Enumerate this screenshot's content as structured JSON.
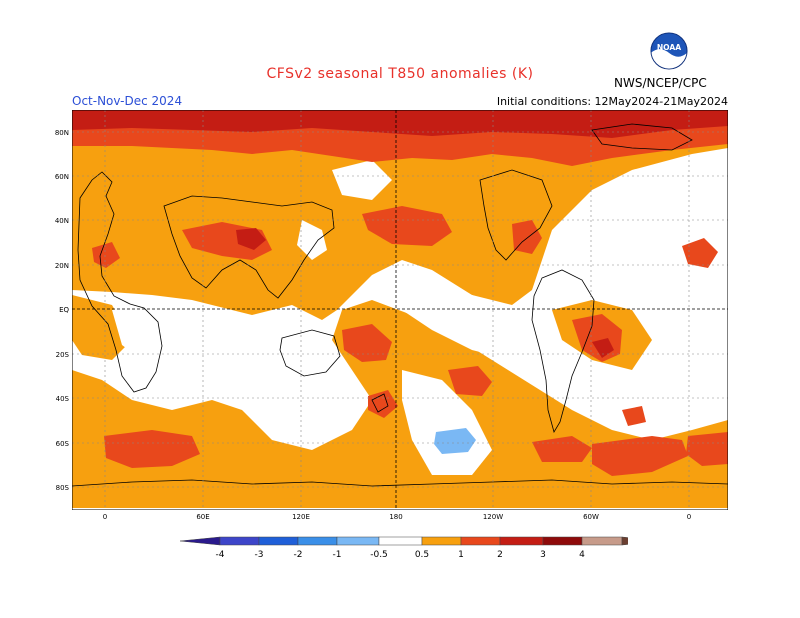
{
  "title": "CFSv2 seasonal T850 anomalies (K)",
  "season": "Oct-Nov-Dec 2024",
  "initial_conditions": "Initial conditions: 12May2024-21May2024",
  "agency": "NWS/NCEP/CPC",
  "logo_text": "NOAA",
  "lat_labels": [
    "80N",
    "60N",
    "40N",
    "20N",
    "EQ",
    "20S",
    "40S",
    "60S",
    "80S"
  ],
  "lon_labels": [
    "0",
    "60E",
    "120E",
    "180",
    "120W",
    "60W",
    "0"
  ],
  "legend": {
    "ticks": [
      "-4",
      "-3",
      "-2",
      "-1",
      "-0.5",
      "0.5",
      "1",
      "2",
      "3",
      "4"
    ],
    "colors": [
      "#2a1a8c",
      "#3d45c9",
      "#1f5fd8",
      "#3a8fe8",
      "#7ab8f4",
      "#ffffff",
      "#f7a00f",
      "#e8481c",
      "#c41d14",
      "#8e0a0a",
      "#c79b8a",
      "#6b3f31"
    ]
  },
  "colors": {
    "title": "#e8312a",
    "season": "#2c4fd6",
    "anom_05_1": "#f7a00f",
    "anom_1_2": "#e8481c",
    "anom_2_3": "#c41d14",
    "anom_3_4": "#8e0a0a",
    "anom_neg": "#7ab8f4"
  }
}
